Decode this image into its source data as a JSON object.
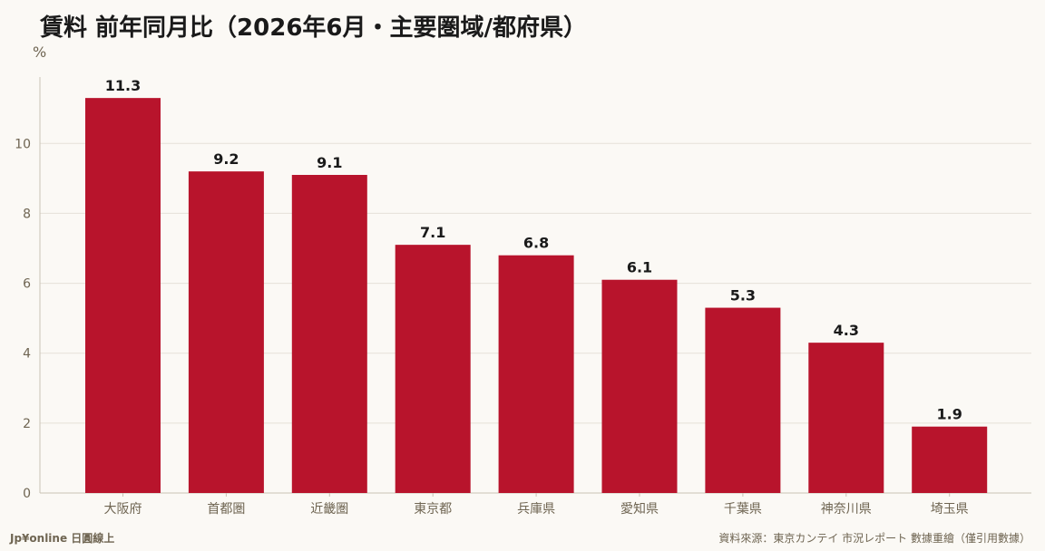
{
  "header": {
    "title": "賃料 前年同月比（2026年6月・主要圏域/都府県）",
    "unit": "%"
  },
  "footer": {
    "brand": "Jp¥online 日圓線上",
    "source": "資料來源：東京カンテイ 市況レポート 數據重繪（僅引用數據）"
  },
  "colors": {
    "bar": "#b8142c",
    "grid": "#e6e1d8",
    "axis": "#c9c2b5",
    "tick_text": "#6f6552",
    "value_text": "#1a1a1a"
  },
  "chart_data": {
    "type": "bar",
    "categories": [
      "大阪府",
      "首都圏",
      "近畿圏",
      "東京都",
      "兵庫県",
      "愛知県",
      "千葉県",
      "神奈川県",
      "埼玉県"
    ],
    "values": [
      11.3,
      9.2,
      9.1,
      7.1,
      6.8,
      6.1,
      5.3,
      4.3,
      1.9
    ],
    "value_labels": [
      "11.3",
      "9.2",
      "9.1",
      "7.1",
      "6.8",
      "6.1",
      "5.3",
      "4.3",
      "1.9"
    ],
    "yticks": [
      0,
      2,
      4,
      6,
      8,
      10
    ],
    "ylim": [
      0,
      11.9
    ],
    "grid": true,
    "legend": "none"
  }
}
